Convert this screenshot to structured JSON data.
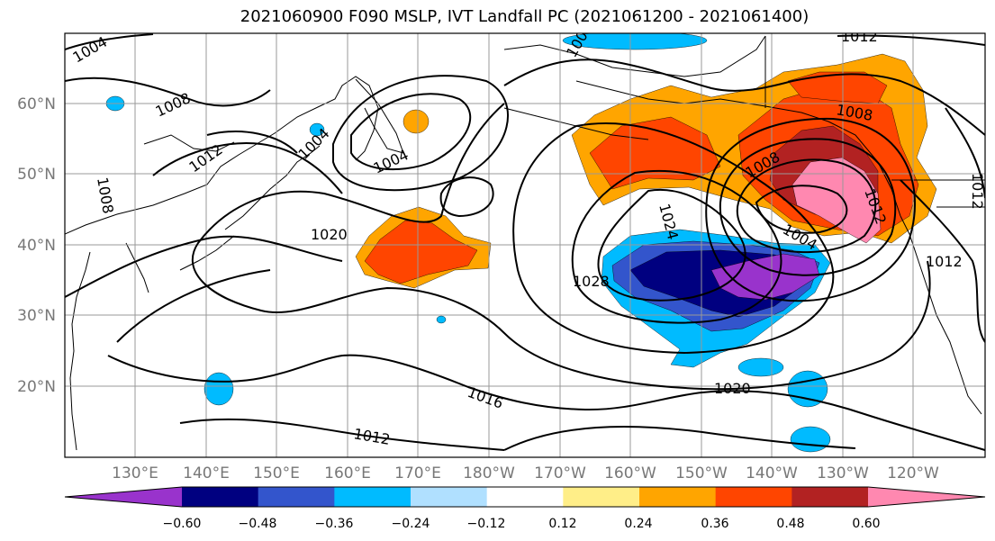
{
  "title": "2021060900 F090 MSLP, IVT Landfall PC (2021061200 - 2021061400)",
  "map": {
    "lat_labels": [
      "60°N",
      "50°N",
      "40°N",
      "30°N",
      "20°N"
    ],
    "lon_labels": [
      "130°E",
      "140°E",
      "150°E",
      "160°E",
      "170°E",
      "180°W",
      "170°W",
      "160°W",
      "150°W",
      "140°W",
      "130°W",
      "120°W"
    ],
    "contour_labels": [
      "1004",
      "1008",
      "1004",
      "1012",
      "1008",
      "1008",
      "1004",
      "1020",
      "1024",
      "1028",
      "1016",
      "1012",
      "1020",
      "1012",
      "1008",
      "1008",
      "1004",
      "1012",
      "1012",
      "1012",
      "1008"
    ],
    "land_color": "#ffffff",
    "grid": true
  },
  "colorbar": {
    "colors": [
      "#9933cc",
      "#000080",
      "#3355cc",
      "#00bbff",
      "#b0e0ff",
      "#ffffff",
      "#ffee88",
      "#ffa500",
      "#ff4500",
      "#b22222",
      "#ff88b0"
    ],
    "tick_labels": [
      "−0.60",
      "−0.48",
      "−0.36",
      "−0.24",
      "−0.12",
      "0.12",
      "0.24",
      "0.36",
      "0.48",
      "0.60"
    ],
    "extend": "both"
  }
}
